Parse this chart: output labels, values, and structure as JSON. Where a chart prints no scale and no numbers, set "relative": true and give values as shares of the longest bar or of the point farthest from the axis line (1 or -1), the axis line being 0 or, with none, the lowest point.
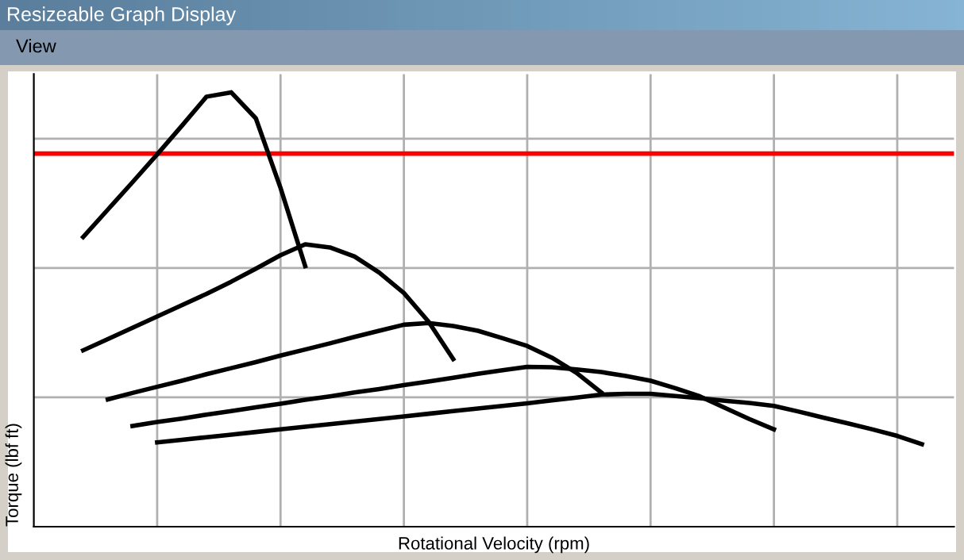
{
  "chart_data": {
    "type": "line",
    "title": "Resizeable Graph Display",
    "annotations": [
      "View"
    ],
    "xlabel": "Rotational Velocity (rpm)",
    "ylabel": "Torque (lbf ft)",
    "relative": true,
    "grid": true,
    "marker": "none",
    "line_style": "solid",
    "categories": [
      null,
      null,
      null,
      null,
      null,
      null,
      null,
      null,
      null,
      null,
      null,
      null,
      null,
      null,
      null,
      null,
      null,
      null,
      null,
      null,
      null,
      null,
      null,
      null,
      null,
      null,
      null,
      null,
      null,
      null,
      null,
      null,
      null,
      null,
      null,
      null,
      null,
      null
    ],
    "ref_lines": [
      {
        "axis": "y",
        "value": 0.859,
        "color": "#ff0000"
      }
    ],
    "series": [
      {
        "color": "#000000",
        "values": [
          null,
          null,
          0.667,
          0.73,
          0.793,
          0.857,
          0.923,
          0.99,
          1.0,
          0.94,
          0.78,
          0.6,
          null,
          null,
          null,
          null,
          null,
          null,
          null,
          null,
          null,
          null,
          null,
          null,
          null,
          null,
          null,
          null,
          null,
          null,
          null,
          null,
          null,
          null,
          null,
          null,
          null,
          null
        ]
      },
      {
        "color": "#000000",
        "values": [
          null,
          null,
          0.406,
          0.432,
          0.458,
          0.484,
          0.51,
          0.536,
          0.564,
          0.594,
          0.625,
          0.65,
          0.643,
          0.622,
          0.585,
          0.538,
          0.472,
          0.386,
          null,
          null,
          null,
          null,
          null,
          null,
          null,
          null,
          null,
          null,
          null,
          null,
          null,
          null,
          null,
          null,
          null,
          null,
          null,
          null
        ]
      },
      {
        "color": "#000000",
        "values": [
          null,
          null,
          null,
          0.293,
          0.308,
          0.322,
          0.336,
          0.351,
          0.365,
          0.379,
          0.394,
          0.408,
          0.422,
          0.437,
          0.451,
          0.465,
          0.469,
          0.462,
          0.451,
          0.434,
          0.416,
          0.389,
          0.354,
          0.309,
          null,
          null,
          null,
          null,
          null,
          null,
          null,
          null,
          null,
          null,
          null,
          null,
          null,
          null
        ]
      },
      {
        "color": "#000000",
        "values": [
          null,
          null,
          null,
          null,
          0.232,
          0.241,
          0.249,
          0.258,
          0.266,
          0.275,
          0.283,
          0.292,
          0.3,
          0.309,
          0.317,
          0.326,
          0.334,
          0.343,
          0.352,
          0.36,
          0.368,
          0.367,
          0.362,
          0.356,
          0.347,
          0.336,
          0.319,
          0.3,
          0.274,
          0.248,
          0.224,
          null,
          null,
          null,
          null,
          null,
          null,
          null
        ]
      },
      {
        "color": "#000000",
        "values": [
          null,
          null,
          null,
          null,
          null,
          0.194,
          0.2,
          0.206,
          0.212,
          0.218,
          0.224,
          0.23,
          0.236,
          0.242,
          0.248,
          0.254,
          0.26,
          0.266,
          0.272,
          0.278,
          0.284,
          0.291,
          0.297,
          0.304,
          0.306,
          0.306,
          0.301,
          0.296,
          0.29,
          0.285,
          0.278,
          0.265,
          0.251,
          0.238,
          0.224,
          0.209,
          0.19,
          null
        ]
      }
    ]
  }
}
